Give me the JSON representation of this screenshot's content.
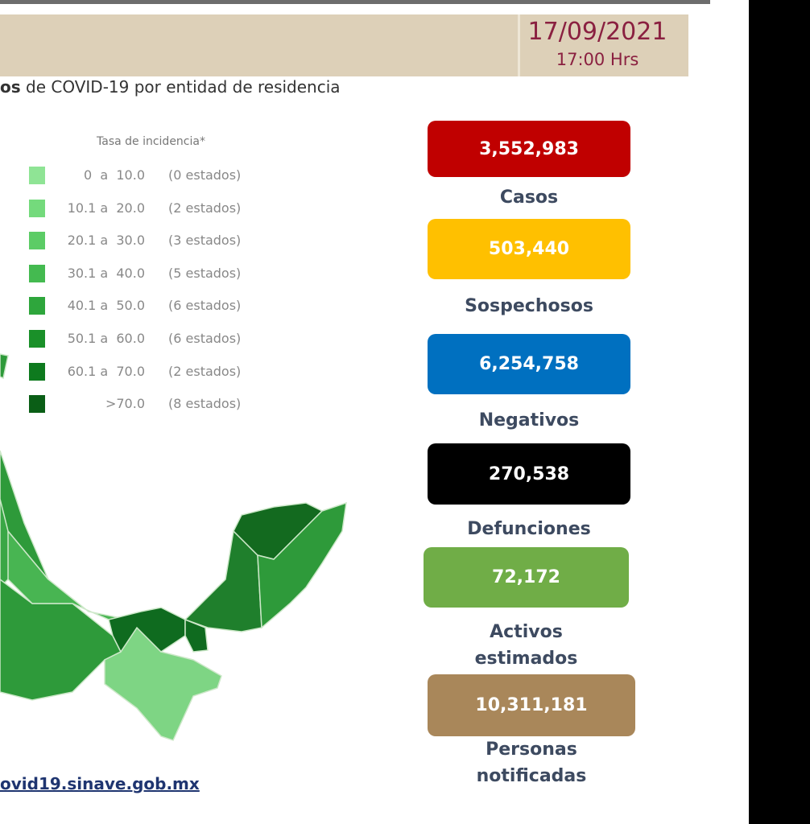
{
  "header": {
    "date": "17/09/2021",
    "time": "17:00 Hrs"
  },
  "subtitle": {
    "bold": "os",
    "rest": "de COVID-19 por entidad de residencia"
  },
  "legend": {
    "title": "Tasa de incidencia*",
    "rows": [
      {
        "range": "0  a  10.0",
        "count": "(0 estados)"
      },
      {
        "range": "10.1 a  20.0",
        "count": "(2 estados)"
      },
      {
        "range": "20.1 a  30.0",
        "count": "(3 estados)"
      },
      {
        "range": "30.1 a  40.0",
        "count": "(5 estados)"
      },
      {
        "range": "40.1 a  50.0",
        "count": "(6 estados)"
      },
      {
        "range": "50.1 a  60.0",
        "count": "(6 estados)"
      },
      {
        "range": "60.1 a  70.0",
        "count": "(2 estados)"
      },
      {
        "range": ">70.0",
        "count": "(8 estados)"
      }
    ]
  },
  "stats": [
    {
      "value": "3,552,983",
      "label": "Casos"
    },
    {
      "value": "503,440",
      "label": "Sospechosos"
    },
    {
      "value": "6,254,758",
      "label": "Negativos"
    },
    {
      "value": "270,538",
      "label": "Defunciones"
    },
    {
      "value": "72,172",
      "label": "Activos estimados"
    },
    {
      "value": "10,311,181",
      "label": "Personas notificadas"
    }
  ],
  "link": "ovid19.sinave.gob.mx"
}
